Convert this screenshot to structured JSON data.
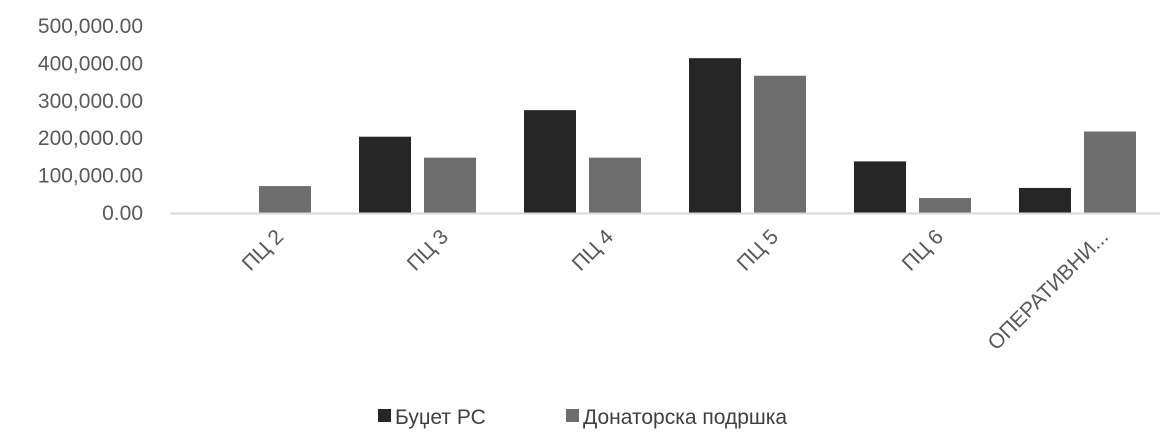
{
  "chart_data": {
    "type": "bar",
    "categories": [
      "ПЦ 2",
      "ПЦ 3",
      "ПЦ 4",
      "ПЦ 5",
      "ПЦ 6",
      "ОПЕРАТИВНИ..."
    ],
    "series": [
      {
        "name": "Буџет РС",
        "values": [
          0,
          204000,
          275000,
          414000,
          138000,
          67000
        ],
        "color": "#262626"
      },
      {
        "name": "Донаторска подршка",
        "values": [
          72000,
          148000,
          148000,
          367000,
          40000,
          218000
        ],
        "color": "#6e6e6e"
      }
    ],
    "yticks": [
      "0.00",
      "100,000.00",
      "200,000.00",
      "300,000.00",
      "400,000.00",
      "500,000.00"
    ],
    "ylim": [
      0,
      500000
    ],
    "grid": false,
    "legend_position": "bottom",
    "axis_color": "#d9d9d9"
  }
}
